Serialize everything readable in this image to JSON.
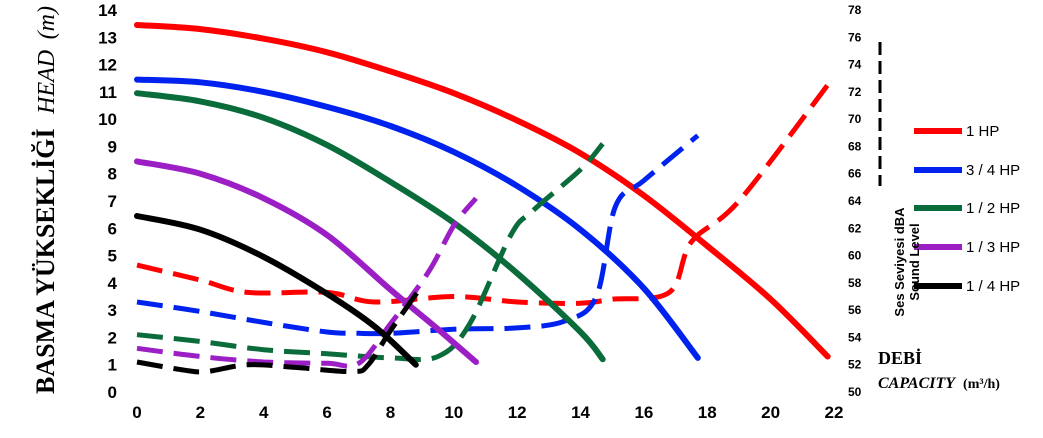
{
  "chart_data": {
    "type": "line",
    "ylabel_main": "BASMA YÜKSEKLİĞİ",
    "ylabel_sub": "HEAD",
    "ylabel_unit": "(m)",
    "xlabel_main": "DEBİ",
    "xlabel_sub": "CAPACITY",
    "xlabel_unit": "(m³/h)",
    "y2label_main": "Ses Seviyesi dBA",
    "y2label_sub": "Sound Level",
    "xlim": [
      0,
      22
    ],
    "ylim": [
      0,
      14
    ],
    "y2lim": [
      50,
      78
    ],
    "x_ticks": [
      "0",
      "2",
      "4",
      "6",
      "8",
      "10",
      "12",
      "14",
      "16",
      "18",
      "20",
      "22"
    ],
    "y_ticks": [
      "0",
      "1",
      "2",
      "3",
      "4",
      "5",
      "6",
      "7",
      "8",
      "9",
      "10",
      "11",
      "12",
      "13",
      "14"
    ],
    "y2_ticks": [
      "50",
      "52",
      "54",
      "56",
      "58",
      "60",
      "62",
      "64",
      "66",
      "68",
      "70",
      "72",
      "74",
      "76",
      "78"
    ],
    "grid": false,
    "legend_position": "right",
    "series": [
      {
        "name": "1 HP",
        "color": "#ff0000",
        "head": [
          [
            0,
            13.45
          ],
          [
            2,
            13.3
          ],
          [
            4,
            12.95
          ],
          [
            6,
            12.45
          ],
          [
            8,
            11.75
          ],
          [
            10,
            10.95
          ],
          [
            12,
            9.95
          ],
          [
            14,
            8.75
          ],
          [
            16,
            7.2
          ],
          [
            18,
            5.35
          ],
          [
            20,
            3.4
          ],
          [
            21.8,
            1.3
          ]
        ],
        "sound_dba": [
          [
            0,
            59.3
          ],
          [
            2,
            58.2
          ],
          [
            3.5,
            57.3
          ],
          [
            6,
            57.3
          ],
          [
            7.5,
            56.6
          ],
          [
            10,
            57
          ],
          [
            12,
            56.6
          ],
          [
            14,
            56.5
          ],
          [
            15,
            56.8
          ],
          [
            16.8,
            57.3
          ],
          [
            17.5,
            61
          ],
          [
            19,
            64
          ],
          [
            21.8,
            72.5
          ]
        ]
      },
      {
        "name": "3 / 4 HP",
        "color": "#0022ee",
        "head": [
          [
            0,
            11.45
          ],
          [
            2,
            11.35
          ],
          [
            4,
            11
          ],
          [
            6,
            10.45
          ],
          [
            8,
            9.75
          ],
          [
            10,
            8.8
          ],
          [
            12,
            7.55
          ],
          [
            14,
            5.95
          ],
          [
            16,
            3.8
          ],
          [
            17.7,
            1.25
          ]
        ],
        "sound_dba": [
          [
            0,
            56.6
          ],
          [
            2,
            55.9
          ],
          [
            4,
            55.1
          ],
          [
            6,
            54.4
          ],
          [
            7,
            54.3
          ],
          [
            8,
            54.3
          ],
          [
            10,
            54.6
          ],
          [
            12,
            54.7
          ],
          [
            13.5,
            55.2
          ],
          [
            14.5,
            57
          ],
          [
            15.1,
            63.6
          ],
          [
            16,
            65.5
          ],
          [
            17.7,
            68.8
          ]
        ]
      },
      {
        "name": "1 / 2 HP",
        "color": "#0a6b3b",
        "head": [
          [
            0,
            10.95
          ],
          [
            2,
            10.65
          ],
          [
            4,
            10.05
          ],
          [
            6,
            9.05
          ],
          [
            8,
            7.7
          ],
          [
            10,
            6.2
          ],
          [
            12,
            4.35
          ],
          [
            14,
            2.2
          ],
          [
            14.7,
            1.2
          ]
        ],
        "sound_dba": [
          [
            0,
            54.2
          ],
          [
            2,
            53.7
          ],
          [
            4,
            53.1
          ],
          [
            6,
            52.8
          ],
          [
            8,
            52.5
          ],
          [
            9.5,
            52.6
          ],
          [
            10.5,
            55
          ],
          [
            11.8,
            61.5
          ],
          [
            12.5,
            63.3
          ],
          [
            14,
            66.3
          ],
          [
            14.7,
            68.2
          ]
        ]
      },
      {
        "name": "1 / 3 HP",
        "color": "#9b1fc4",
        "head": [
          [
            0,
            8.45
          ],
          [
            2,
            8
          ],
          [
            4,
            7.1
          ],
          [
            6,
            5.75
          ],
          [
            8,
            3.75
          ],
          [
            9.5,
            2.3
          ],
          [
            10.7,
            1.1
          ]
        ],
        "sound_dba": [
          [
            0,
            53.2
          ],
          [
            2,
            52.6
          ],
          [
            4,
            52.2
          ],
          [
            6,
            52.1
          ],
          [
            7,
            52.1
          ],
          [
            8,
            55
          ],
          [
            9.2,
            58.8
          ],
          [
            10,
            62.2
          ],
          [
            10.7,
            64.2
          ]
        ]
      },
      {
        "name": "1 / 4 HP",
        "color": "#000000",
        "head": [
          [
            0,
            6.45
          ],
          [
            2,
            5.95
          ],
          [
            4,
            4.95
          ],
          [
            6,
            3.6
          ],
          [
            7.5,
            2.4
          ],
          [
            8.8,
            1
          ]
        ],
        "sound_dba": [
          [
            0,
            52.2
          ],
          [
            1.5,
            51.6
          ],
          [
            2.2,
            51.5
          ],
          [
            3.5,
            52
          ],
          [
            5,
            51.8
          ],
          [
            6.8,
            51.5
          ],
          [
            7.3,
            52
          ],
          [
            8,
            54.5
          ],
          [
            9,
            57.8
          ]
        ]
      }
    ]
  }
}
